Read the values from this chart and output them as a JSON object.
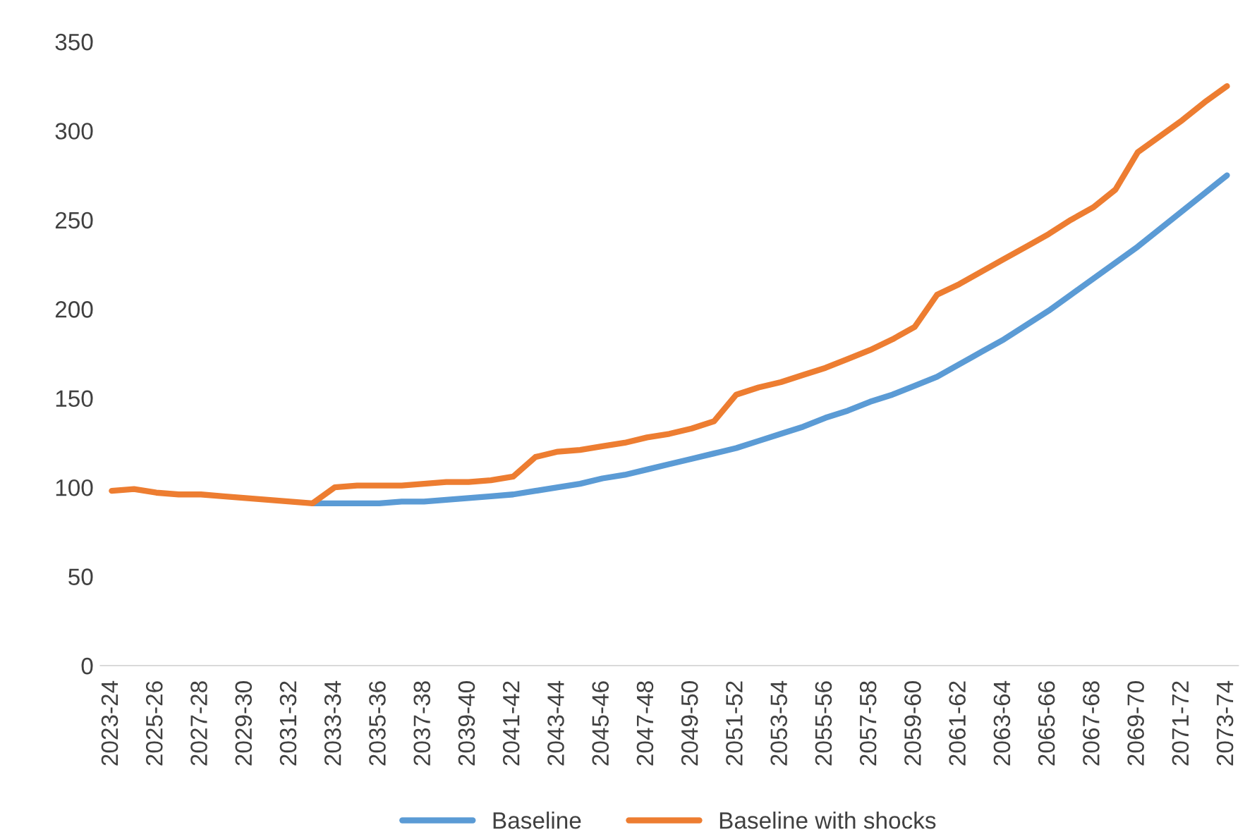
{
  "chart_data": {
    "type": "line",
    "categories": [
      "2023-24",
      null,
      "2025-26",
      null,
      "2027-28",
      null,
      "2029-30",
      null,
      "2031-32",
      null,
      "2033-34",
      null,
      "2035-36",
      null,
      "2037-38",
      null,
      "2039-40",
      null,
      "2041-42",
      null,
      "2043-44",
      null,
      "2045-46",
      null,
      "2047-48",
      null,
      "2049-50",
      null,
      "2051-52",
      null,
      "2053-54",
      null,
      "2055-56",
      null,
      "2057-58",
      null,
      "2059-60",
      null,
      "2061-62",
      null,
      "2063-64",
      null,
      "2065-66",
      null,
      "2067-68",
      null,
      "2069-70",
      null,
      "2071-72",
      null,
      "2073-74"
    ],
    "series": [
      {
        "name": "Baseline",
        "color": "#5b9bd5",
        "values": [
          null,
          null,
          null,
          null,
          null,
          null,
          null,
          null,
          null,
          91,
          91,
          91,
          91,
          92,
          92,
          93,
          94,
          95,
          96,
          98,
          100,
          102,
          105,
          107,
          110,
          113,
          116,
          119,
          122,
          126,
          130,
          134,
          139,
          143,
          148,
          152,
          157,
          162,
          169,
          176,
          183,
          191,
          199,
          208,
          217,
          226,
          235,
          245,
          255,
          265,
          275
        ]
      },
      {
        "name": "Baseline with shocks",
        "color": "#ed7d31",
        "values": [
          98,
          99,
          97,
          96,
          96,
          95,
          94,
          93,
          92,
          91,
          100,
          101,
          101,
          101,
          102,
          103,
          103,
          104,
          106,
          117,
          120,
          121,
          123,
          125,
          128,
          130,
          133,
          137,
          152,
          156,
          159,
          163,
          167,
          172,
          177,
          183,
          190,
          208,
          214,
          221,
          228,
          235,
          242,
          250,
          257,
          267,
          288,
          297,
          306,
          316,
          325
        ]
      }
    ],
    "ylim": [
      0,
      350
    ],
    "yticks": [
      0,
      50,
      100,
      150,
      200,
      250,
      300,
      350
    ],
    "grid": false,
    "legend": "bottom",
    "marker": "none",
    "line_style": "solid"
  }
}
